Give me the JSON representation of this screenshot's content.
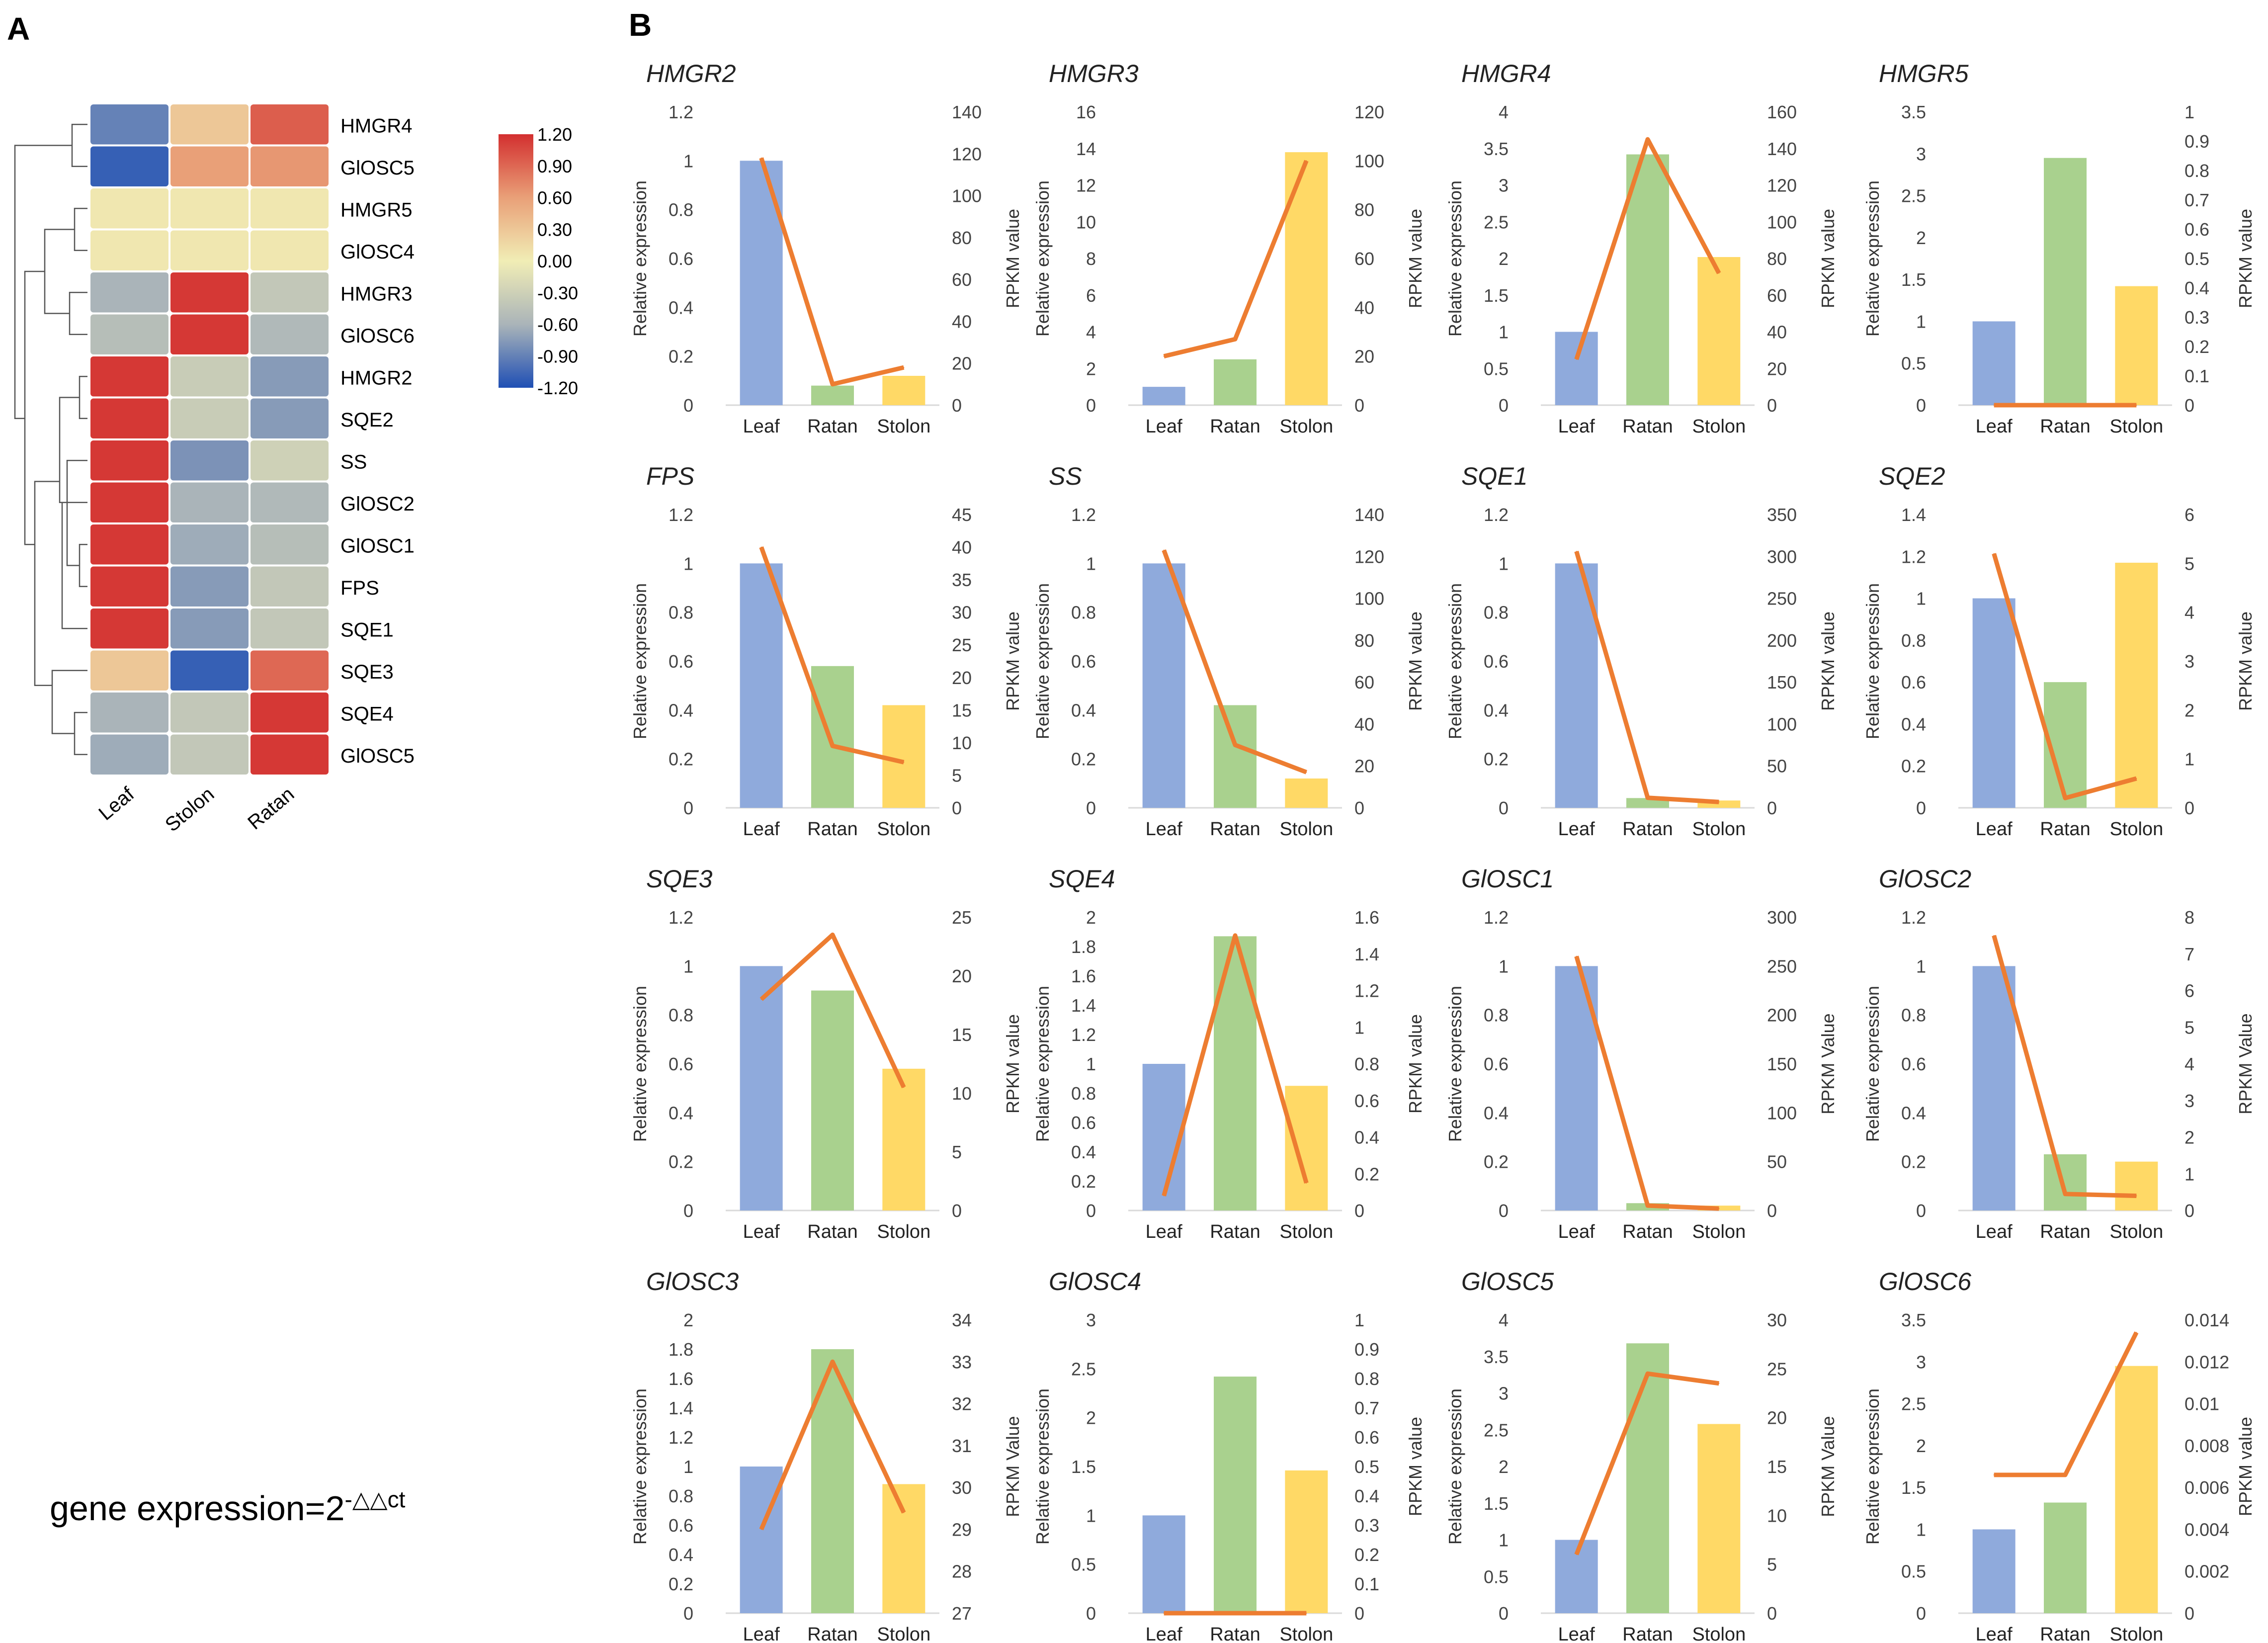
{
  "panel_labels": {
    "a": "A",
    "b": "B"
  },
  "formula": {
    "prefix": "gene expression=2",
    "exponent": "-△△ct"
  },
  "colors": {
    "leaf": "#8FAADC",
    "ratan": "#A9D18E",
    "stolon": "#FFD966",
    "line": "#ED7D31",
    "heat_high": "#D32F2F",
    "heat_mid": "#F1EDB5",
    "heat_low": "#1F4FB4"
  },
  "chart_data": [
    {
      "type": "heatmap",
      "title": "",
      "columns": [
        "Leaf",
        "Stolon",
        "Ratan"
      ],
      "rows": [
        "HMGR4",
        "GlOSC5",
        "HMGR5",
        "GlOSC4",
        "HMGR3",
        "GlOSC6",
        "HMGR2",
        "SQE2",
        "SS",
        "GlOSC2",
        "GlOSC1",
        "FPS",
        "SQE1",
        "SQE3",
        "SQE4",
        "GlOSC5"
      ],
      "values": [
        [
          -0.9,
          0.3,
          0.95
        ],
        [
          -1.1,
          0.6,
          0.65
        ],
        [
          0.05,
          0.05,
          0.05
        ],
        [
          0.05,
          0.05,
          0.05
        ],
        [
          -0.6,
          1.15,
          -0.4
        ],
        [
          -0.5,
          1.15,
          -0.55
        ],
        [
          1.15,
          -0.35,
          -0.75
        ],
        [
          1.15,
          -0.35,
          -0.75
        ],
        [
          1.15,
          -0.8,
          -0.3
        ],
        [
          1.15,
          -0.6,
          -0.55
        ],
        [
          1.15,
          -0.65,
          -0.5
        ],
        [
          1.15,
          -0.75,
          -0.4
        ],
        [
          1.15,
          -0.75,
          -0.4
        ],
        [
          0.3,
          -1.1,
          0.9
        ],
        [
          -0.6,
          -0.4,
          1.15
        ],
        [
          -0.65,
          -0.4,
          1.15
        ]
      ],
      "colorbar": {
        "min": -1.2,
        "max": 1.2,
        "ticks": [
          "1.20",
          "0.90",
          "0.60",
          "0.30",
          "0.00",
          "-0.30",
          "-0.60",
          "-0.90",
          "-1.20"
        ]
      }
    },
    {
      "type": "bar",
      "title": "HMGR2",
      "categories": [
        "Leaf",
        "Ratan",
        "Stolon"
      ],
      "values": [
        1,
        0.08,
        0.12
      ],
      "line_values": [
        118,
        10,
        18
      ],
      "ylabel": "Relative expression",
      "y2label": "RPKM value",
      "yticks": [
        "0",
        "0.2",
        "0.4",
        "0.6",
        "0.8",
        "1",
        "1.2"
      ],
      "y2ticks": [
        "0",
        "20",
        "40",
        "60",
        "80",
        "100",
        "120",
        "140"
      ],
      "ylim": [
        0,
        1.2
      ],
      "y2lim": [
        0,
        140
      ]
    },
    {
      "type": "bar",
      "title": "HMGR3",
      "categories": [
        "Leaf",
        "Ratan",
        "Stolon"
      ],
      "values": [
        1,
        2.5,
        13.8
      ],
      "line_values": [
        20,
        27,
        100
      ],
      "ylabel": "Relative expression",
      "y2label": "RPKM value",
      "yticks": [
        "0",
        "2",
        "4",
        "6",
        "8",
        "10",
        "12",
        "14",
        "16"
      ],
      "y2ticks": [
        "0",
        "20",
        "40",
        "60",
        "80",
        "100",
        "120"
      ],
      "ylim": [
        0,
        16
      ],
      "y2lim": [
        0,
        120
      ]
    },
    {
      "type": "bar",
      "title": "HMGR4",
      "categories": [
        "Leaf",
        "Ratan",
        "Stolon"
      ],
      "values": [
        1,
        3.42,
        2.02
      ],
      "line_values": [
        25,
        145,
        72
      ],
      "ylabel": "Relative expression",
      "y2label": "RPKM value",
      "yticks": [
        "0",
        "0.5",
        "1",
        "1.5",
        "2",
        "2.5",
        "3",
        "3.5",
        "4"
      ],
      "y2ticks": [
        "0",
        "20",
        "40",
        "60",
        "80",
        "100",
        "120",
        "140",
        "160"
      ],
      "ylim": [
        0,
        4
      ],
      "y2lim": [
        0,
        160
      ]
    },
    {
      "type": "bar",
      "title": "HMGR5",
      "categories": [
        "Leaf",
        "Ratan",
        "Stolon"
      ],
      "values": [
        1,
        2.95,
        1.42
      ],
      "line_values": [
        0,
        0,
        0
      ],
      "ylabel": "Relative expression",
      "y2label": "RPKM value",
      "yticks": [
        "0",
        "0.5",
        "1",
        "1.5",
        "2",
        "2.5",
        "3",
        "3.5"
      ],
      "y2ticks": [
        "0",
        "0.1",
        "0.2",
        "0.3",
        "0.4",
        "0.5",
        "0.6",
        "0.7",
        "0.8",
        "0.9",
        "1"
      ],
      "ylim": [
        0,
        3.5
      ],
      "y2lim": [
        0,
        1
      ]
    },
    {
      "type": "bar",
      "title": "FPS",
      "categories": [
        "Leaf",
        "Ratan",
        "Stolon"
      ],
      "values": [
        1,
        0.58,
        0.42
      ],
      "line_values": [
        40,
        9.5,
        7
      ],
      "ylabel": "Relative expression",
      "y2label": "RPKM value",
      "yticks": [
        "0",
        "0.2",
        "0.4",
        "0.6",
        "0.8",
        "1",
        "1.2"
      ],
      "y2ticks": [
        "0",
        "5",
        "10",
        "15",
        "20",
        "25",
        "30",
        "35",
        "40",
        "45"
      ],
      "ylim": [
        0,
        1.2
      ],
      "y2lim": [
        0,
        45
      ]
    },
    {
      "type": "bar",
      "title": "SS",
      "categories": [
        "Leaf",
        "Ratan",
        "Stolon"
      ],
      "values": [
        1,
        0.42,
        0.12
      ],
      "line_values": [
        123,
        30,
        17
      ],
      "ylabel": "Relative expression",
      "y2label": "RPKM value",
      "yticks": [
        "0",
        "0.2",
        "0.4",
        "0.6",
        "0.8",
        "1",
        "1.2"
      ],
      "y2ticks": [
        "0",
        "20",
        "40",
        "60",
        "80",
        "100",
        "120",
        "140"
      ],
      "ylim": [
        0,
        1.2
      ],
      "y2lim": [
        0,
        140
      ]
    },
    {
      "type": "bar",
      "title": "SQE1",
      "categories": [
        "Leaf",
        "Ratan",
        "Stolon"
      ],
      "values": [
        1,
        0.04,
        0.03
      ],
      "line_values": [
        306,
        12,
        7
      ],
      "ylabel": "Relative expression",
      "y2label": "RPKM value",
      "yticks": [
        "0",
        "0.2",
        "0.4",
        "0.6",
        "0.8",
        "1",
        "1.2"
      ],
      "y2ticks": [
        "0",
        "50",
        "100",
        "150",
        "200",
        "250",
        "300",
        "350"
      ],
      "ylim": [
        0,
        1.2
      ],
      "y2lim": [
        0,
        350
      ]
    },
    {
      "type": "bar",
      "title": "SQE2",
      "categories": [
        "Leaf",
        "Ratan",
        "Stolon"
      ],
      "values": [
        1,
        0.6,
        1.17
      ],
      "line_values": [
        5.2,
        0.2,
        0.6
      ],
      "ylabel": "Relative expression",
      "y2label": "RPKM value",
      "yticks": [
        "0",
        "0.2",
        "0.4",
        "0.6",
        "0.8",
        "1",
        "1.2",
        "1.4"
      ],
      "y2ticks": [
        "0",
        "1",
        "2",
        "3",
        "4",
        "5",
        "6"
      ],
      "ylim": [
        0,
        1.4
      ],
      "y2lim": [
        0,
        6
      ]
    },
    {
      "type": "bar",
      "title": "SQE3",
      "categories": [
        "Leaf",
        "Ratan",
        "Stolon"
      ],
      "values": [
        1,
        0.9,
        0.58
      ],
      "line_values": [
        18,
        23.5,
        10.5
      ],
      "ylabel": "Relative expression",
      "y2label": "RPKM value",
      "yticks": [
        "0",
        "0.2",
        "0.4",
        "0.6",
        "0.8",
        "1",
        "1.2"
      ],
      "y2ticks": [
        "0",
        "5",
        "10",
        "15",
        "20",
        "25"
      ],
      "ylim": [
        0,
        1.2
      ],
      "y2lim": [
        0,
        25
      ]
    },
    {
      "type": "bar",
      "title": "SQE4",
      "categories": [
        "Leaf",
        "Ratan",
        "Stolon"
      ],
      "values": [
        1,
        1.87,
        0.85
      ],
      "line_values": [
        0.08,
        1.5,
        0.15
      ],
      "ylabel": "Relative expression",
      "y2label": "RPKM value",
      "yticks": [
        "0",
        "0.2",
        "0.4",
        "0.6",
        "0.8",
        "1",
        "1.2",
        "1.4",
        "1.6",
        "1.8",
        "2"
      ],
      "y2ticks": [
        "0",
        "0.2",
        "0.4",
        "0.6",
        "0.8",
        "1",
        "1.2",
        "1.4",
        "1.6"
      ],
      "ylim": [
        0,
        2
      ],
      "y2lim": [
        0,
        1.6
      ]
    },
    {
      "type": "bar",
      "title": "GlOSC1",
      "categories": [
        "Leaf",
        "Ratan",
        "Stolon"
      ],
      "values": [
        1,
        0.03,
        0.02
      ],
      "line_values": [
        260,
        5,
        2
      ],
      "ylabel": "Relative expression",
      "y2label": "RPKM Value",
      "yticks": [
        "0",
        "0.2",
        "0.4",
        "0.6",
        "0.8",
        "1",
        "1.2"
      ],
      "y2ticks": [
        "0",
        "50",
        "100",
        "150",
        "200",
        "250",
        "300"
      ],
      "ylim": [
        0,
        1.2
      ],
      "y2lim": [
        0,
        300
      ]
    },
    {
      "type": "bar",
      "title": "GlOSC2",
      "categories": [
        "Leaf",
        "Ratan",
        "Stolon"
      ],
      "values": [
        1,
        0.23,
        0.2
      ],
      "line_values": [
        7.5,
        0.45,
        0.4
      ],
      "ylabel": "Relative expression",
      "y2label": "RPKM Value",
      "yticks": [
        "0",
        "0.2",
        "0.4",
        "0.6",
        "0.8",
        "1",
        "1.2"
      ],
      "y2ticks": [
        "0",
        "1",
        "2",
        "3",
        "4",
        "5",
        "6",
        "7",
        "8"
      ],
      "ylim": [
        0,
        1.2
      ],
      "y2lim": [
        0,
        8
      ]
    },
    {
      "type": "bar",
      "title": "GlOSC3",
      "categories": [
        "Leaf",
        "Ratan",
        "Stolon"
      ],
      "values": [
        1,
        1.8,
        0.88
      ],
      "line_values": [
        29,
        33,
        29.4
      ],
      "ylabel": "Relative expression",
      "y2label": "RPKM Value",
      "yticks": [
        "0",
        "0.2",
        "0.4",
        "0.6",
        "0.8",
        "1",
        "1.2",
        "1.4",
        "1.6",
        "1.8",
        "2"
      ],
      "y2ticks": [
        "27",
        "28",
        "29",
        "30",
        "31",
        "32",
        "33",
        "34"
      ],
      "ylim": [
        0,
        2
      ],
      "y2lim": [
        27,
        34
      ]
    },
    {
      "type": "bar",
      "title": "GlOSC4",
      "categories": [
        "Leaf",
        "Ratan",
        "Stolon"
      ],
      "values": [
        1,
        2.42,
        1.46
      ],
      "line_values": [
        0,
        0,
        0
      ],
      "ylabel": "Relative expression",
      "y2label": "RPKM value",
      "yticks": [
        "0",
        "0.5",
        "1",
        "1.5",
        "2",
        "2.5",
        "3"
      ],
      "y2ticks": [
        "0",
        "0.1",
        "0.2",
        "0.3",
        "0.4",
        "0.5",
        "0.6",
        "0.7",
        "0.8",
        "0.9",
        "1"
      ],
      "ylim": [
        0,
        3
      ],
      "y2lim": [
        0,
        1
      ]
    },
    {
      "type": "bar",
      "title": "GlOSC5",
      "categories": [
        "Leaf",
        "Ratan",
        "Stolon"
      ],
      "values": [
        1,
        3.68,
        2.58
      ],
      "line_values": [
        6,
        24.5,
        23.5
      ],
      "ylabel": "Relative expression",
      "y2label": "RPKM Value",
      "yticks": [
        "0",
        "0.5",
        "1",
        "1.5",
        "2",
        "2.5",
        "3",
        "3.5",
        "4"
      ],
      "y2ticks": [
        "0",
        "5",
        "10",
        "15",
        "20",
        "25",
        "30"
      ],
      "ylim": [
        0,
        4
      ],
      "y2lim": [
        0,
        30
      ]
    },
    {
      "type": "bar",
      "title": "GlOSC6",
      "categories": [
        "Leaf",
        "Ratan",
        "Stolon"
      ],
      "values": [
        1,
        1.32,
        2.95
      ],
      "line_values": [
        0.0066,
        0.0066,
        0.0134
      ],
      "ylabel": "Relative expression",
      "y2label": "RPKM value",
      "yticks": [
        "0",
        "0.5",
        "1",
        "1.5",
        "2",
        "2.5",
        "3",
        "3.5"
      ],
      "y2ticks": [
        "0",
        "0.002",
        "0.004",
        "0.006",
        "0.008",
        "0.01",
        "0.012",
        "0.014"
      ],
      "ylim": [
        0,
        3.5
      ],
      "y2lim": [
        0,
        0.014
      ]
    }
  ]
}
